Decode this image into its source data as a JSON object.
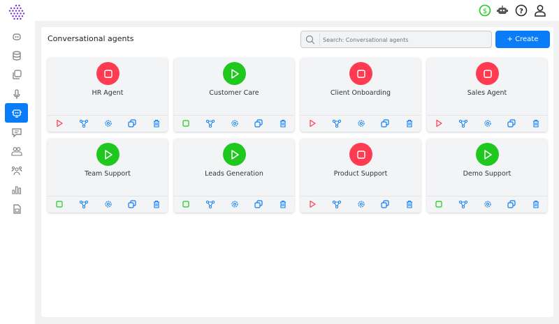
{
  "sidebar": {
    "items": [
      {
        "icon": "bot-icon"
      },
      {
        "icon": "database-icon"
      },
      {
        "icon": "copy-icon"
      },
      {
        "icon": "microphone-icon"
      },
      {
        "icon": "agent-chip-icon",
        "active": true
      },
      {
        "icon": "chat-icon"
      },
      {
        "icon": "users-icon"
      },
      {
        "icon": "team-icon"
      },
      {
        "icon": "bar-chart-icon"
      },
      {
        "icon": "document-icon"
      }
    ]
  },
  "topbar": {
    "icons": [
      "dollar-icon",
      "bot-icon",
      "help-icon",
      "user-icon"
    ],
    "dollar_color": "#1fc71f"
  },
  "main": {
    "title": "Conversational agents",
    "search": {
      "placeholder": "Search: Conversational agents",
      "value": ""
    },
    "create_label": "+ Create",
    "agents": [
      {
        "name": "HR Agent",
        "status": "stopped"
      },
      {
        "name": "Customer Care",
        "status": "running"
      },
      {
        "name": "Client Onboarding",
        "status": "stopped"
      },
      {
        "name": "Sales Agent",
        "status": "stopped"
      },
      {
        "name": "Team Support",
        "status": "running"
      },
      {
        "name": "Leads Generation",
        "status": "running"
      },
      {
        "name": "Product Support",
        "status": "stopped"
      },
      {
        "name": "Demo Support",
        "status": "running"
      }
    ]
  },
  "colors": {
    "accent": "#0a7cf8",
    "running": "#1fc71f",
    "stopped": "#ff3b52"
  }
}
